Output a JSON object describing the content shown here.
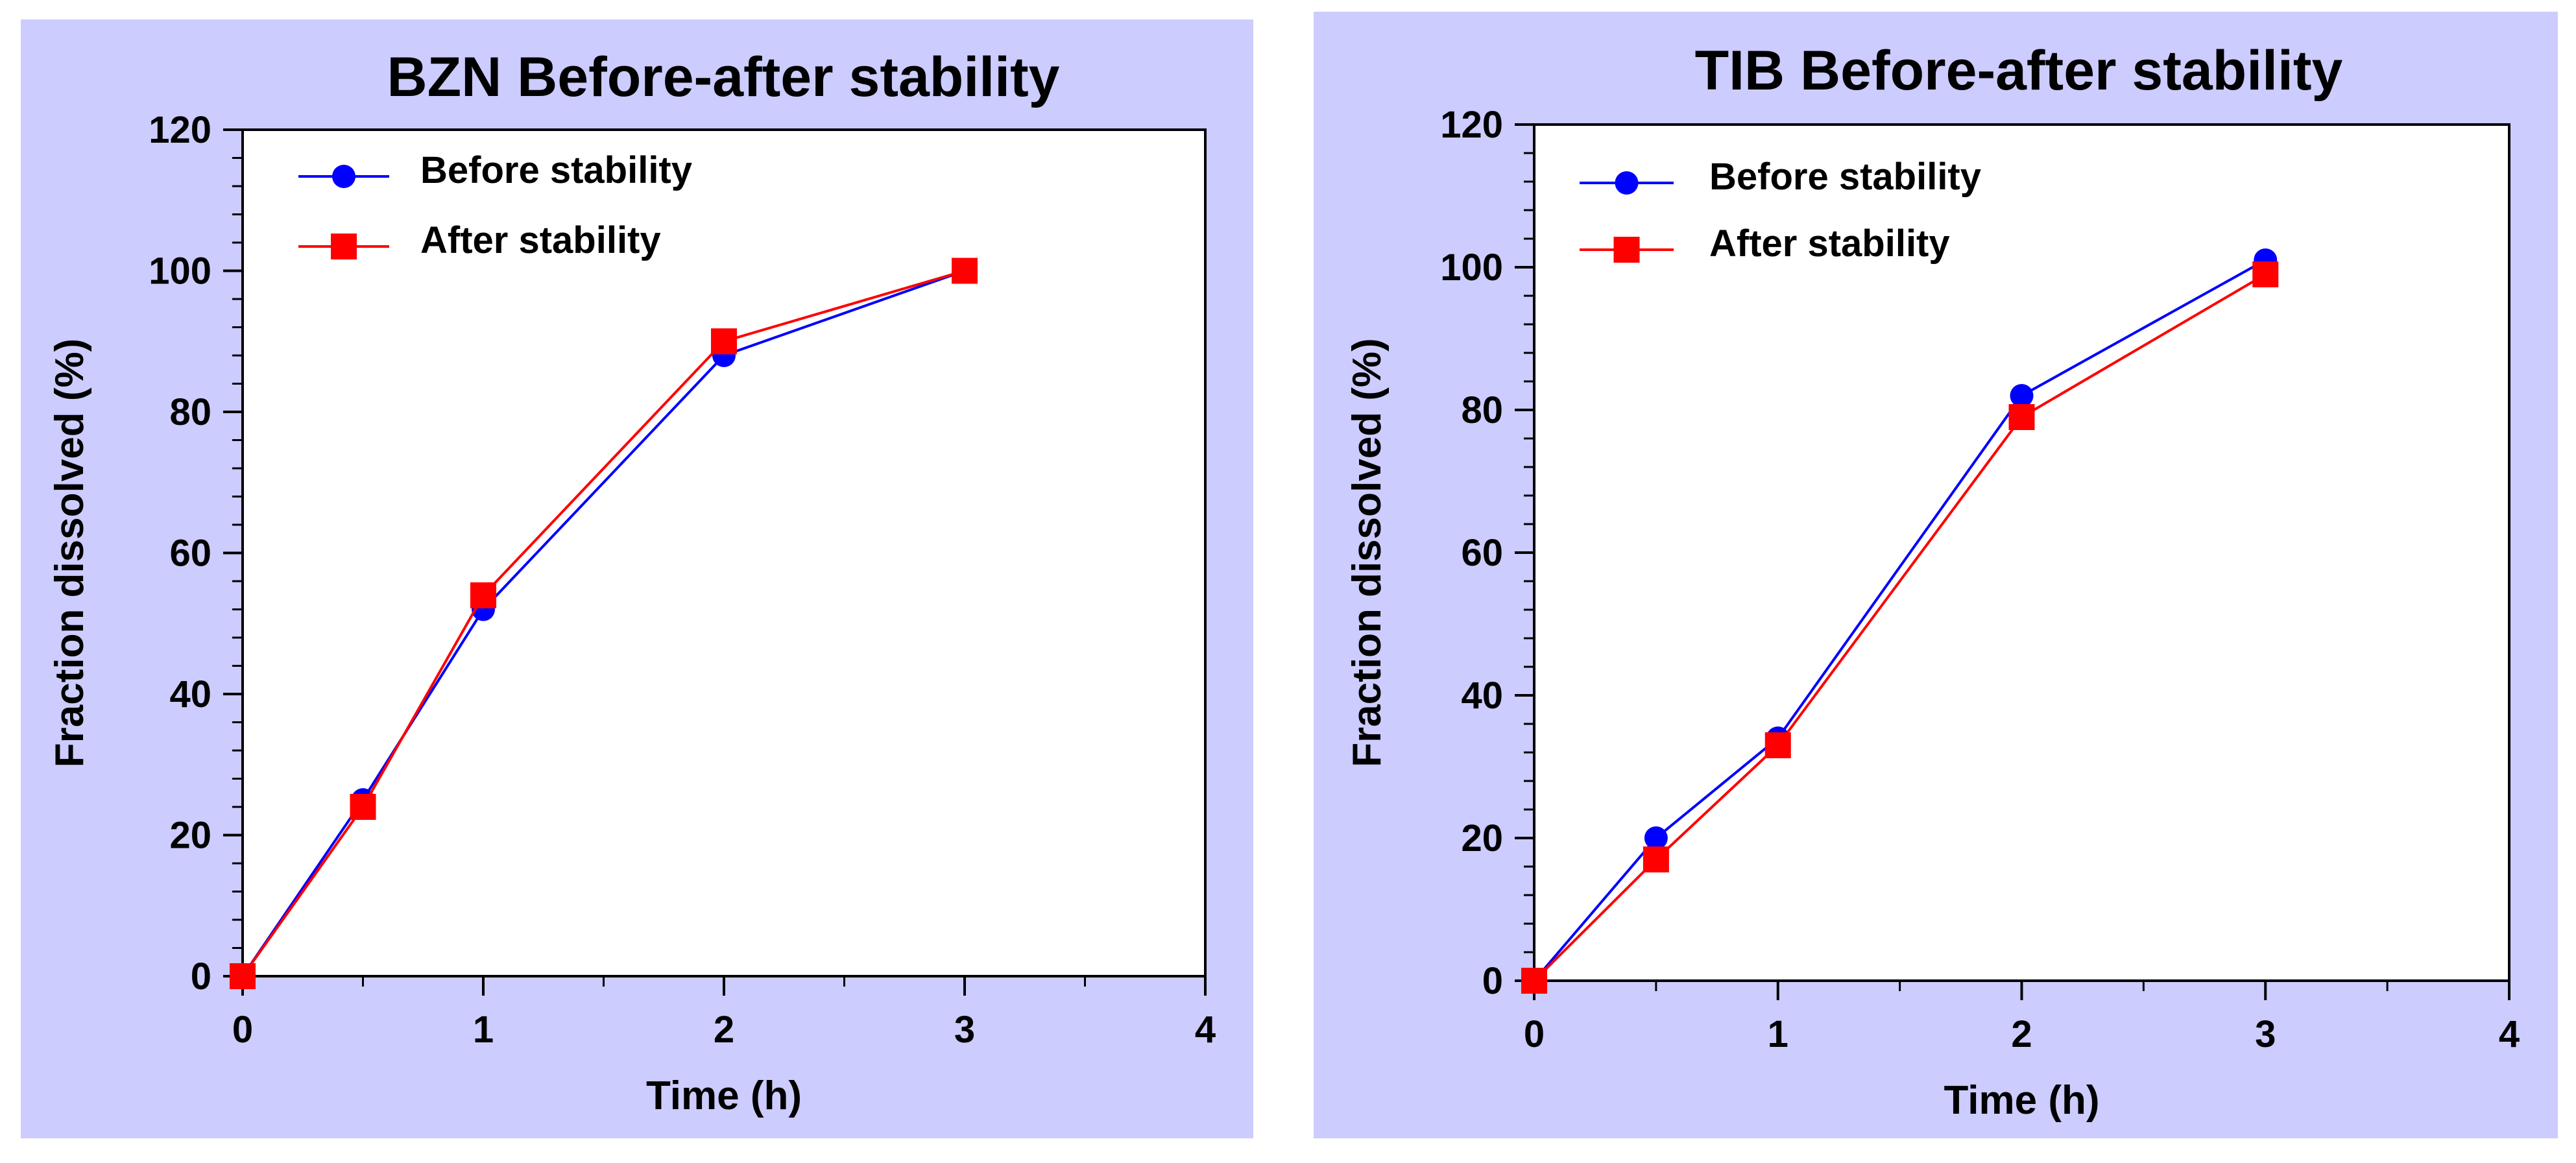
{
  "chart_data": [
    {
      "type": "line",
      "title": "BZN Before-after stability",
      "xlabel": "Time (h)",
      "ylabel": "Fraction dissolved (%)",
      "xlim": [
        0,
        4
      ],
      "ylim": [
        0,
        120
      ],
      "xticks": [
        0,
        1,
        2,
        3,
        4
      ],
      "yticks": [
        0,
        20,
        40,
        60,
        80,
        100,
        120
      ],
      "grid": false,
      "legend_position": "top-left",
      "background_color": "#ccccff",
      "series": [
        {
          "name": "Before stability",
          "color": "#0000ff",
          "marker": "circle",
          "x": [
            0,
            0.5,
            1,
            2,
            3
          ],
          "y": [
            0,
            25,
            52,
            88,
            100
          ]
        },
        {
          "name": "After stability",
          "color": "#ff0000",
          "marker": "square",
          "x": [
            0,
            0.5,
            1,
            2,
            3
          ],
          "y": [
            0,
            24,
            54,
            90,
            100
          ]
        }
      ]
    },
    {
      "type": "line",
      "title": "TIB Before-after stability",
      "xlabel": "Time (h)",
      "ylabel": "Fraction dissolved (%)",
      "xlim": [
        0,
        4
      ],
      "ylim": [
        0,
        120
      ],
      "xticks": [
        0,
        1,
        2,
        3,
        4
      ],
      "yticks": [
        0,
        20,
        40,
        60,
        80,
        100,
        120
      ],
      "grid": false,
      "legend_position": "top-left",
      "background_color": "#ccccff",
      "series": [
        {
          "name": "Before stability",
          "color": "#0000ff",
          "marker": "circle",
          "x": [
            0,
            0.5,
            1,
            2,
            3
          ],
          "y": [
            0,
            20,
            34,
            82,
            101
          ]
        },
        {
          "name": "After stability",
          "color": "#ff0000",
          "marker": "square",
          "x": [
            0,
            0.5,
            1,
            2,
            3
          ],
          "y": [
            0,
            17,
            33,
            79,
            99
          ]
        }
      ]
    }
  ]
}
